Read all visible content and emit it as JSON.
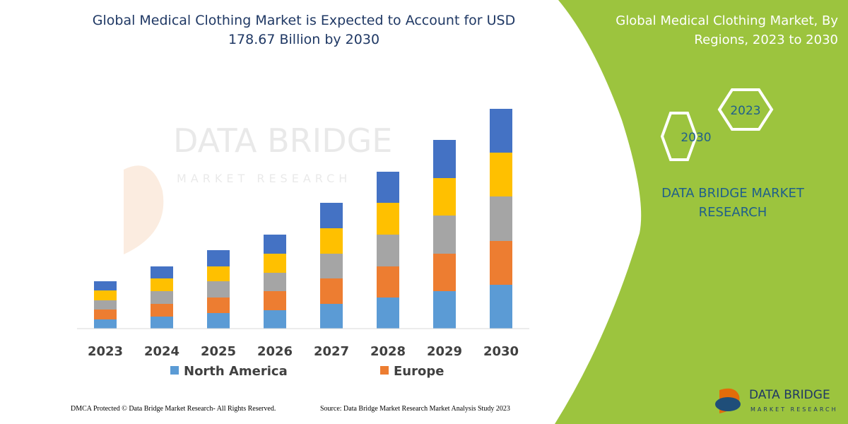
{
  "chart_data": {
    "type": "stacked_bar",
    "title": "Global Medical Clothing Market is Expected to Account for USD 178.67 Billion by 2030",
    "categories": [
      "2023",
      "2024",
      "2025",
      "2026",
      "2027",
      "2028",
      "2029",
      "2030"
    ],
    "series": [
      {
        "name": "North America",
        "color": "#5b9bd5",
        "values": [
          13,
          17,
          22,
          26,
          35,
          44,
          53,
          62
        ]
      },
      {
        "name": "Europe",
        "color": "#ed7d31",
        "values": [
          14,
          18,
          22,
          27,
          36,
          44,
          53,
          62
        ]
      },
      {
        "color": "#a5a5a5",
        "values": [
          13,
          18,
          23,
          26,
          35,
          45,
          54,
          63
        ]
      },
      {
        "color": "#ffc000",
        "values": [
          14,
          18,
          21,
          27,
          36,
          45,
          53,
          62
        ]
      },
      {
        "color": "#4472c4",
        "values": [
          13,
          17,
          23,
          27,
          36,
          44,
          54,
          62
        ]
      }
    ],
    "ylim": [
      0,
      320
    ]
  },
  "watermark": {
    "brand": "DATA BRIDGE",
    "tagline": "MARKET RESEARCH"
  },
  "panel": {
    "title": "Global Medical Clothing Market, By Regions, 2023 to 2030",
    "hexagons": [
      "2023",
      "2030"
    ],
    "brand": "DATA BRIDGE MARKET RESEARCH"
  },
  "footer": {
    "copyright": "DMCA Protected © Data Bridge Market Research-  All Rights Reserved.",
    "source": "Source: Data Bridge Market Research  Market Analysis Study 2023"
  },
  "logo": {
    "brand": "DATA BRIDGE",
    "tagline": "MARKET RESEARCH"
  }
}
